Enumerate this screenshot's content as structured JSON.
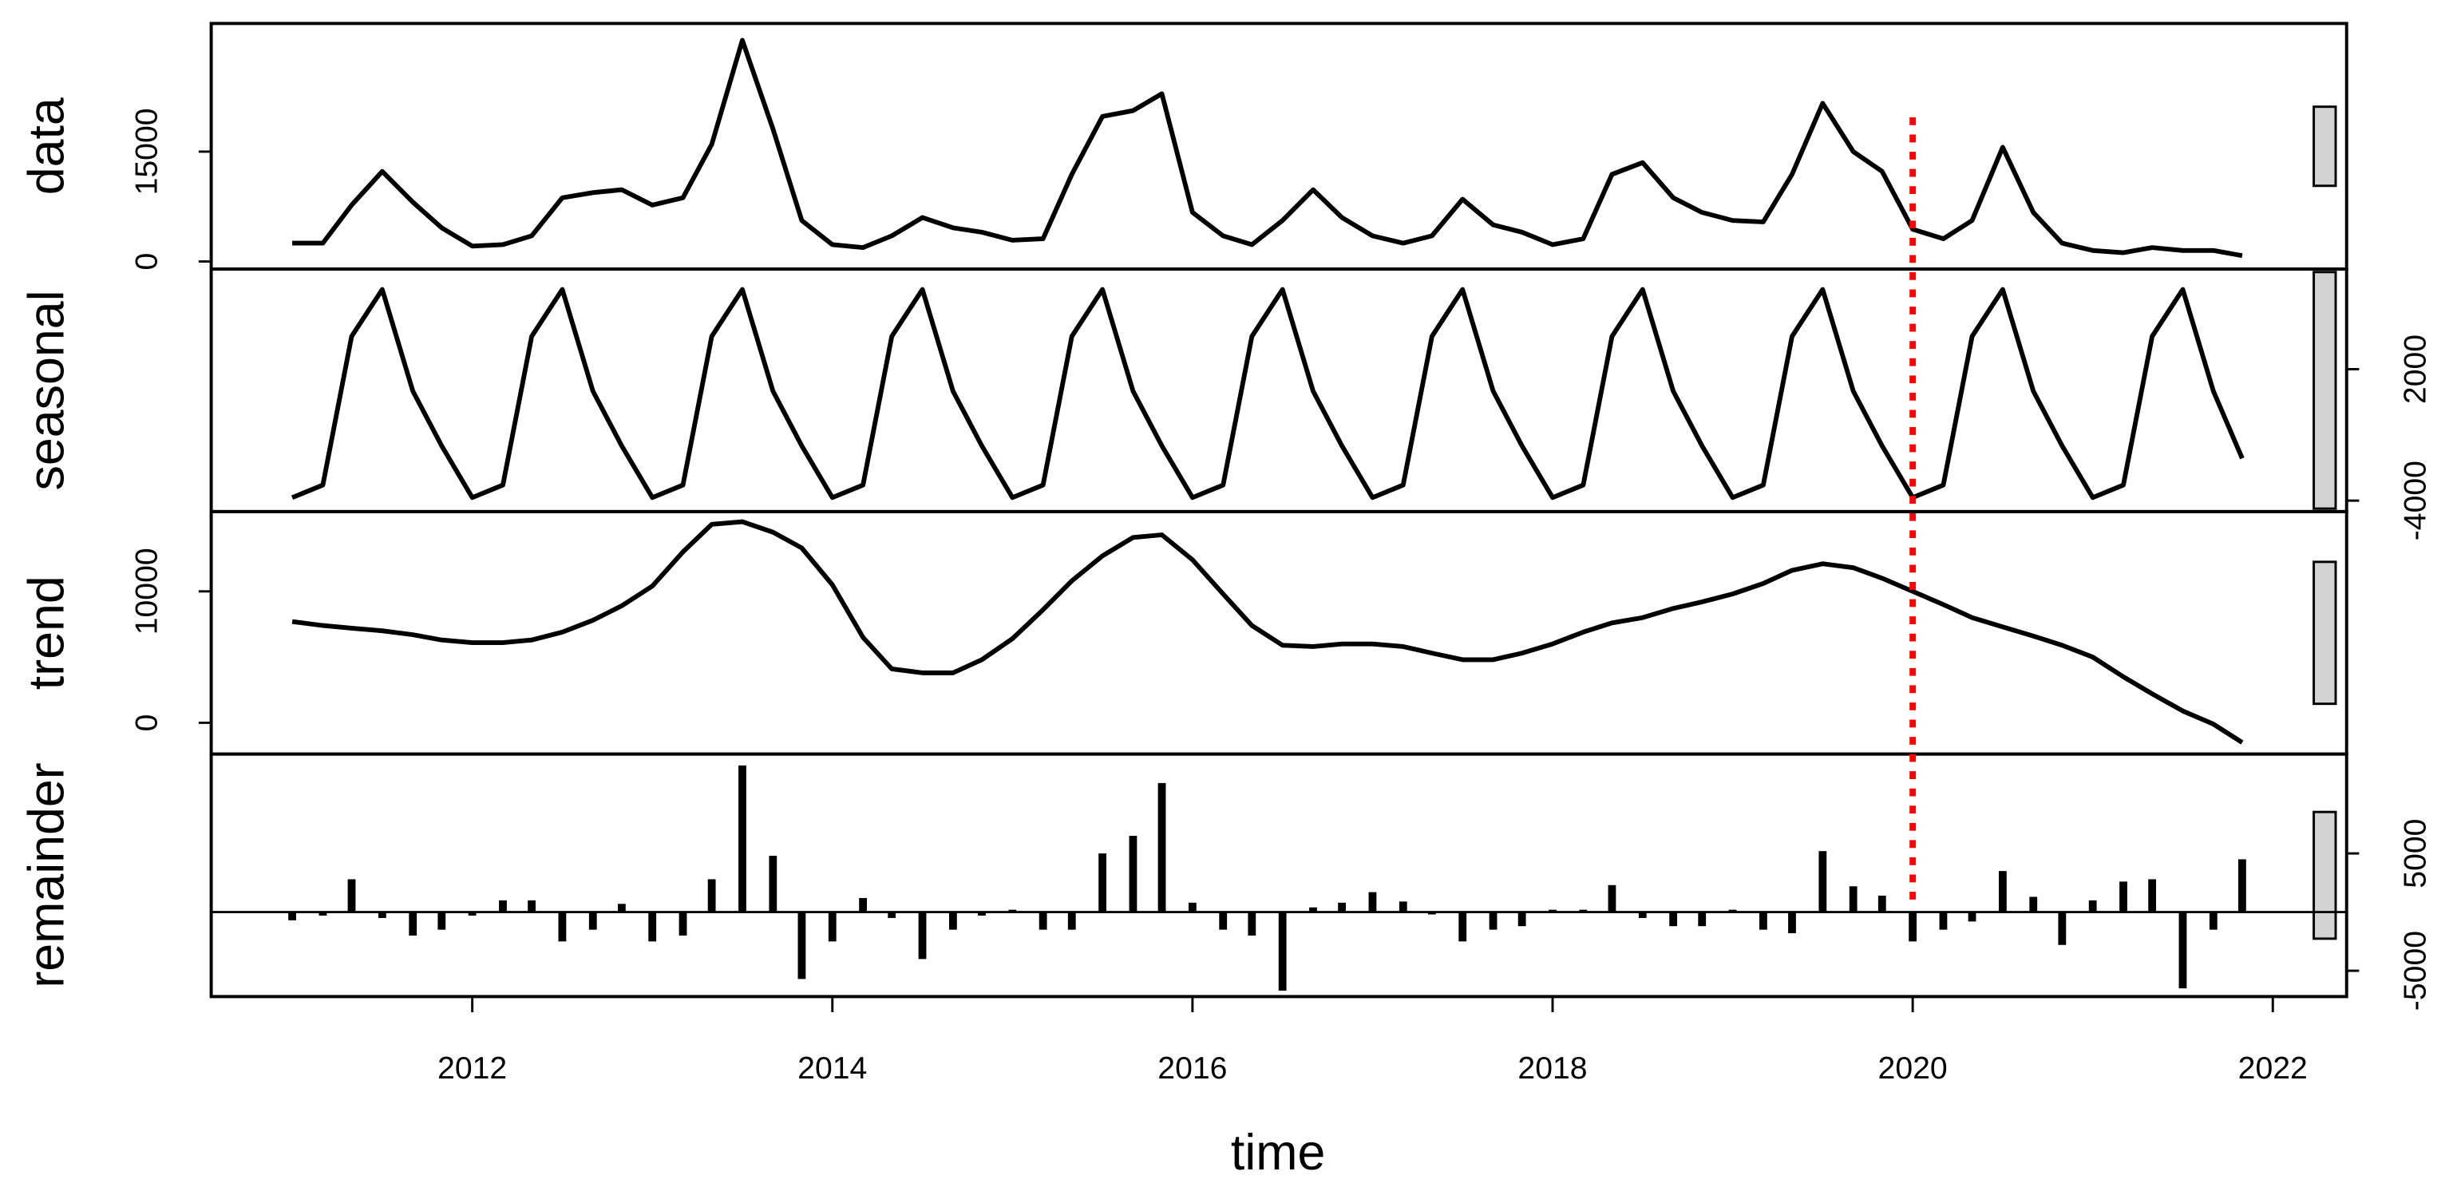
{
  "chart_data": {
    "type": "stl",
    "xlabel": "time",
    "xlim": [
      2010.55,
      2022.41
    ],
    "xticks": [
      2012,
      2014,
      2016,
      2018,
      2020,
      2022
    ],
    "vline": {
      "x": 2020,
      "color": "#ff0000"
    },
    "range_bar": 10800,
    "x": [
      2011.0,
      2011.17,
      2011.33,
      2011.5,
      2011.67,
      2011.83,
      2012.0,
      2012.17,
      2012.33,
      2012.5,
      2012.67,
      2012.83,
      2013.0,
      2013.17,
      2013.33,
      2013.5,
      2013.67,
      2013.83,
      2014.0,
      2014.17,
      2014.33,
      2014.5,
      2014.67,
      2014.83,
      2015.0,
      2015.17,
      2015.33,
      2015.5,
      2015.67,
      2015.83,
      2016.0,
      2016.17,
      2016.33,
      2016.5,
      2016.67,
      2016.83,
      2017.0,
      2017.17,
      2017.33,
      2017.5,
      2017.67,
      2017.83,
      2018.0,
      2018.17,
      2018.33,
      2018.5,
      2018.67,
      2018.83,
      2019.0,
      2019.17,
      2019.33,
      2019.5,
      2019.67,
      2019.83,
      2020.0,
      2020.17,
      2020.33,
      2020.5,
      2020.67,
      2020.83,
      2021.0,
      2021.17,
      2021.33,
      2021.5,
      2021.67,
      2021.83
    ],
    "panels": [
      {
        "name": "data",
        "type": "line",
        "axis_side": "left",
        "color": "#000000",
        "ylim": [
          -1040,
          32500
        ],
        "yticks": [
          0,
          15000
        ],
        "values": [
          2500,
          2500,
          7700,
          12300,
          8100,
          4600,
          2100,
          2300,
          3500,
          8700,
          9400,
          9800,
          7700,
          8700,
          16000,
          30200,
          18100,
          5600,
          2300,
          1900,
          3500,
          6000,
          4600,
          4000,
          2900,
          3100,
          11900,
          19800,
          20600,
          22900,
          6700,
          3500,
          2300,
          5600,
          9800,
          6000,
          3500,
          2500,
          3500,
          8500,
          5000,
          4000,
          2300,
          3100,
          11900,
          13500,
          8700,
          6700,
          5600,
          5400,
          11900,
          21600,
          15000,
          12300,
          4400,
          3100,
          5600,
          15600,
          6700,
          2500,
          1500,
          1200,
          1900,
          1500,
          1500,
          800
        ]
      },
      {
        "name": "seasonal",
        "type": "line",
        "axis_side": "right",
        "color": "#000000",
        "ylim": [
          -4500,
          6570
        ],
        "yticks": [
          -4000,
          2000
        ],
        "values": [
          -3860,
          -3290,
          3500,
          5640,
          1000,
          -1500,
          -3860,
          -3290,
          3500,
          5640,
          1000,
          -1500,
          -3860,
          -3290,
          3500,
          5640,
          1000,
          -1500,
          -3860,
          -3290,
          3500,
          5640,
          1000,
          -1500,
          -3860,
          -3290,
          3500,
          5640,
          1000,
          -1500,
          -3860,
          -3290,
          3500,
          5640,
          1000,
          -1500,
          -3860,
          -3290,
          3500,
          5640,
          1000,
          -1500,
          -3860,
          -3290,
          3500,
          5640,
          1000,
          -1500,
          -3860,
          -3290,
          3500,
          5640,
          1000,
          -1500,
          -3860,
          -3290,
          3500,
          5640,
          1000,
          -1500,
          -3860,
          -3290,
          3500,
          5640,
          1000,
          -2070
        ]
      },
      {
        "name": "trend",
        "type": "line",
        "axis_side": "left",
        "color": "#000000",
        "ylim": [
          -2380,
          16070
        ],
        "yticks": [
          0,
          10000
        ],
        "values": [
          7700,
          7400,
          7200,
          7000,
          6700,
          6300,
          6100,
          6100,
          6300,
          6900,
          7800,
          8900,
          10400,
          13000,
          15100,
          15300,
          14500,
          13300,
          10500,
          6500,
          4100,
          3800,
          3800,
          4800,
          6400,
          8600,
          10800,
          12700,
          14100,
          14300,
          12400,
          9800,
          7400,
          5900,
          5800,
          6000,
          6000,
          5800,
          5300,
          4800,
          4800,
          5300,
          6000,
          6900,
          7600,
          8000,
          8700,
          9200,
          9800,
          10600,
          11600,
          12100,
          11800,
          11000,
          10000,
          9000,
          8000,
          7300,
          6600,
          5900,
          5000,
          3500,
          2200,
          900,
          -100,
          -1500
        ]
      },
      {
        "name": "remainder",
        "type": "bar",
        "axis_side": "right",
        "color": "#000000",
        "ylim": [
          -7200,
          13470
        ],
        "yticks": [
          -5000,
          5000
        ],
        "values": [
          -700,
          -300,
          2800,
          -500,
          -2000,
          -1500,
          -300,
          1000,
          1000,
          -2500,
          -1500,
          700,
          -2500,
          -2000,
          2800,
          12500,
          4800,
          -5700,
          -2500,
          1200,
          -500,
          -4000,
          -1500,
          -300,
          200,
          -1500,
          -1500,
          5000,
          6500,
          11000,
          800,
          -1500,
          -2000,
          -6700,
          400,
          800,
          1700,
          900,
          -200,
          -2500,
          -1500,
          -1200,
          200,
          200,
          2300,
          -500,
          -1200,
          -1200,
          200,
          -1500,
          -1800,
          5200,
          2200,
          1400,
          -2500,
          -1500,
          -800,
          3500,
          1300,
          -2800,
          1000,
          2600,
          2800,
          -6500,
          -1500,
          4500
        ]
      }
    ]
  }
}
